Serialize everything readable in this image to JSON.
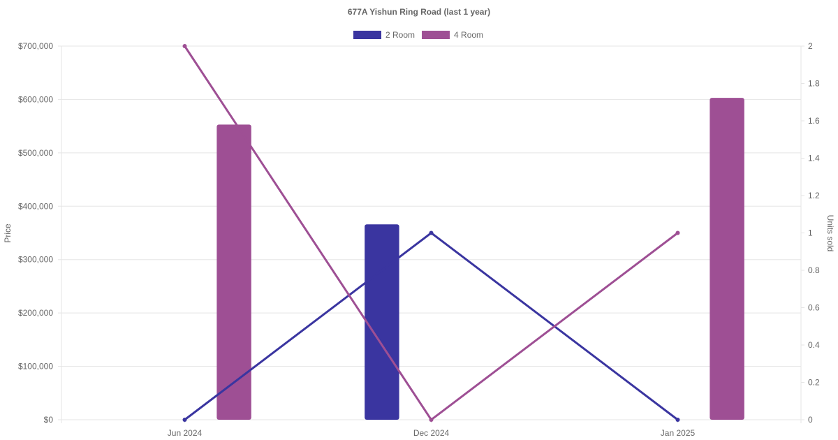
{
  "chart_data": {
    "type": "bar",
    "title": "677A Yishun Ring Road (last 1 year)",
    "categories": [
      "Jun 2024",
      "Dec 2024",
      "Jan 2025"
    ],
    "legend": {
      "position": "top"
    },
    "grid": true,
    "y_left": {
      "label": "Price",
      "range": [
        0,
        700000
      ],
      "ticks": [
        "$0",
        "$100,000",
        "$200,000",
        "$300,000",
        "$400,000",
        "$500,000",
        "$600,000",
        "$700,000"
      ]
    },
    "y_right": {
      "label": "Units sold",
      "range": [
        0,
        2
      ],
      "ticks": [
        "0",
        "0.2",
        "0.4",
        "0.6",
        "0.8",
        "1",
        "1.2",
        "1.4",
        "1.6",
        "1.8",
        "2"
      ]
    },
    "series": [
      {
        "name": "2 Room",
        "color": "#3a35a0",
        "price": [
          null,
          366000,
          null
        ],
        "units_sold": [
          0,
          1,
          0
        ]
      },
      {
        "name": "4 Room",
        "color": "#9e4f94",
        "price": [
          553000,
          null,
          603000
        ],
        "units_sold": [
          2,
          0,
          1
        ]
      }
    ]
  }
}
